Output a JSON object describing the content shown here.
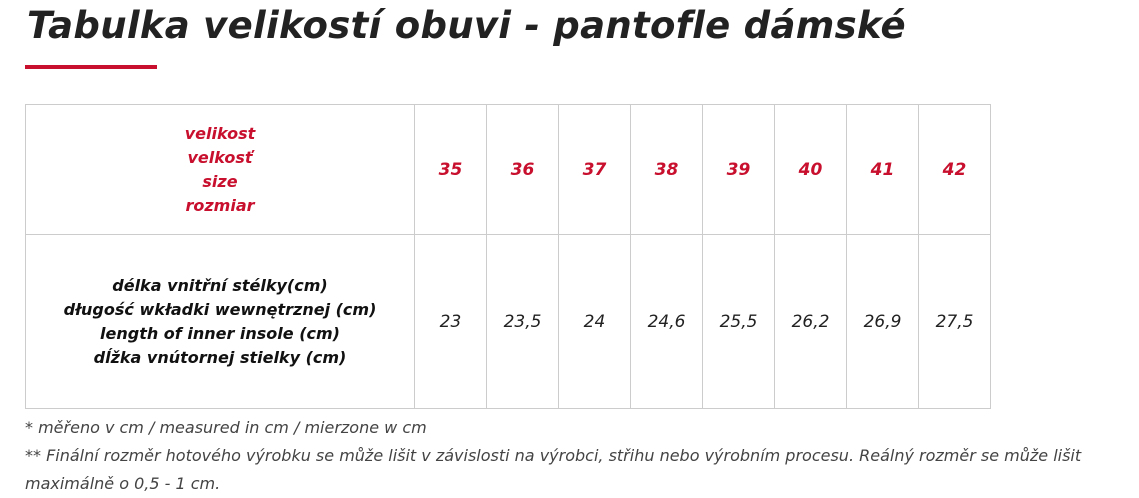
{
  "header": {
    "title": "Tabulka velikostí obuvi - pantofle dámské"
  },
  "table": {
    "size_label": [
      "velikost",
      "velkosť",
      "size",
      "rozmiar"
    ],
    "sizes": [
      35,
      36,
      37,
      38,
      39,
      40,
      41,
      42
    ],
    "row_label": [
      "délka vnitřní stélky(cm)",
      "długość wkładki wewnętrznej (cm)",
      "length of inner insole (cm)",
      "dĺžka vnútornej stielky (cm)"
    ],
    "values": [
      "23",
      "23,5",
      "24",
      "24,6",
      "25,5",
      "26,2",
      "26,9",
      "27,5"
    ]
  },
  "footnotes": [
    "* měřeno v cm / measured in cm / mierzone w cm",
    "** Finální rozměr hotového výrobku se může lišit v závislosti na výrobci, střihu nebo výrobním procesu. Reálný rozměr se může lišit maximálně o 0,5 - 1 cm."
  ]
}
